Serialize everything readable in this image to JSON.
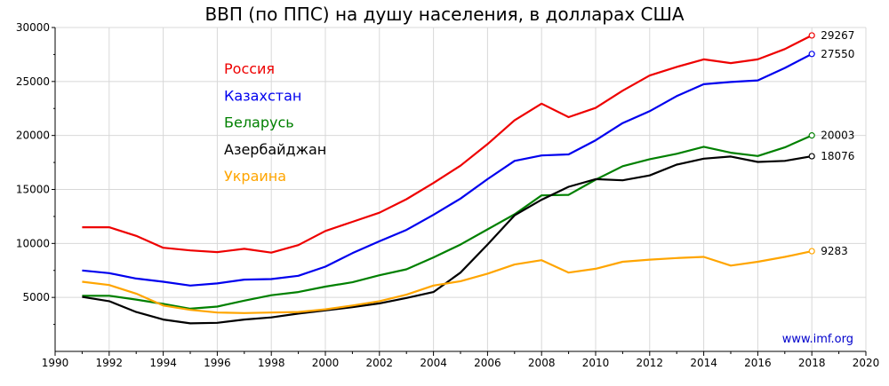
{
  "chart_data": {
    "type": "line",
    "title": "ВВП (по ППС) на душу населения, в долларах США",
    "xlabel": "",
    "ylabel": "",
    "xlim": [
      1990,
      2020
    ],
    "ylim": [
      0,
      30000
    ],
    "x_ticks": [
      "1990",
      "1992",
      "1994",
      "1996",
      "1998",
      "2000",
      "2002",
      "2004",
      "2006",
      "2008",
      "2010",
      "2012",
      "2014",
      "2016",
      "2018",
      "2020"
    ],
    "y_ticks": [
      "5000",
      "10000",
      "15000",
      "20000",
      "25000",
      "30000"
    ],
    "grid": true,
    "legend_position": "top-left",
    "source_note": "www.imf.org",
    "source_color": "#0000cc",
    "x": [
      1991,
      1992,
      1993,
      1994,
      1995,
      1996,
      1997,
      1998,
      1999,
      2000,
      2001,
      2002,
      2003,
      2004,
      2005,
      2006,
      2007,
      2008,
      2009,
      2010,
      2011,
      2012,
      2013,
      2014,
      2015,
      2016,
      2017,
      2018
    ],
    "series": [
      {
        "name": "Россия",
        "color": "#ee0000",
        "end_label": "29267",
        "values": [
          11500,
          11500,
          10700,
          9600,
          9350,
          9200,
          9500,
          9150,
          9850,
          11150,
          12000,
          12850,
          14100,
          15600,
          17200,
          19200,
          21400,
          22950,
          21700,
          22550,
          24150,
          25550,
          26350,
          27050,
          26700,
          27050,
          28000,
          29267
        ]
      },
      {
        "name": "Казахстан",
        "color": "#0000ee",
        "end_label": "27550",
        "values": [
          7500,
          7250,
          6750,
          6450,
          6100,
          6300,
          6650,
          6700,
          7000,
          7850,
          9100,
          10200,
          11250,
          12650,
          14150,
          15950,
          17650,
          18150,
          18250,
          19550,
          21150,
          22250,
          23650,
          24750,
          24950,
          25100,
          26250,
          27550
        ]
      },
      {
        "name": "Беларусь",
        "color": "#008000",
        "end_label": "20003",
        "values": [
          5150,
          5150,
          4800,
          4400,
          3950,
          4150,
          4700,
          5200,
          5500,
          6000,
          6400,
          7050,
          7600,
          8700,
          9900,
          11300,
          12700,
          14450,
          14500,
          15900,
          17150,
          17800,
          18300,
          18950,
          18400,
          18100,
          18900,
          20003
        ]
      },
      {
        "name": "Азербайджан",
        "color": "#000000",
        "end_label": "18076",
        "values": [
          5050,
          4650,
          3650,
          2950,
          2600,
          2650,
          2950,
          3150,
          3500,
          3800,
          4100,
          4450,
          4950,
          5500,
          7300,
          9900,
          12600,
          14050,
          15250,
          15950,
          15850,
          16300,
          17300,
          17850,
          18050,
          17550,
          17650,
          18076
        ]
      },
      {
        "name": "Украина",
        "color": "#ffa500",
        "end_label": "9283",
        "values": [
          6450,
          6150,
          5350,
          4250,
          3850,
          3600,
          3550,
          3600,
          3650,
          3900,
          4250,
          4650,
          5250,
          6100,
          6500,
          7200,
          8050,
          8450,
          7300,
          7650,
          8300,
          8500,
          8650,
          8750,
          7950,
          8300,
          8750,
          9283
        ]
      }
    ]
  }
}
